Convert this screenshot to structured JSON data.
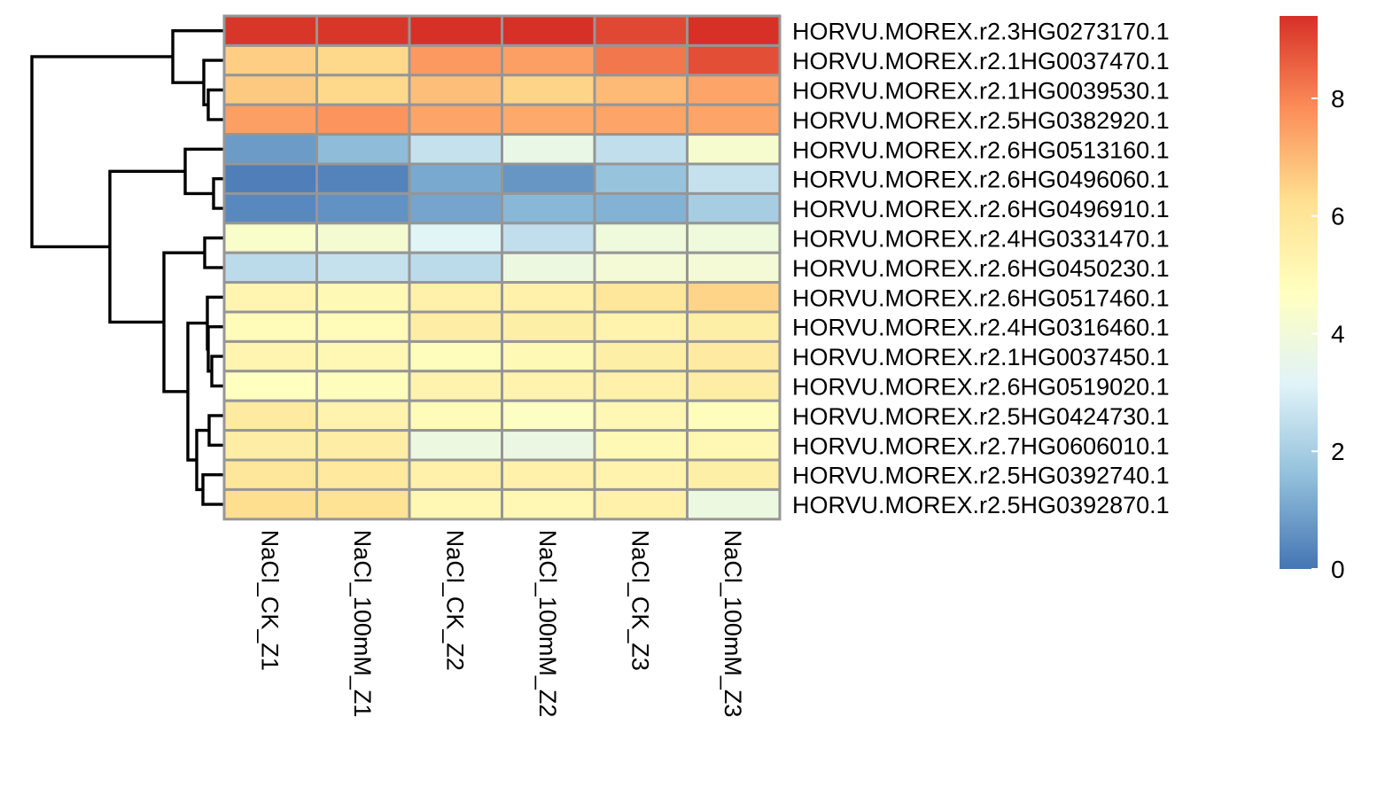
{
  "chart_data": {
    "type": "heatmap",
    "columns": [
      "NaCl_CK_Z1",
      "NaCl_100mM_Z1",
      "NaCl_CK_Z2",
      "NaCl_100mM_Z2",
      "NaCl_CK_Z3",
      "NaCl_100mM_Z3"
    ],
    "rows": [
      "HORVU.MOREX.r2.3HG0273170.1",
      "HORVU.MOREX.r2.1HG0037470.1",
      "HORVU.MOREX.r2.1HG0039530.1",
      "HORVU.MOREX.r2.5HG0382920.1",
      "HORVU.MOREX.r2.6HG0513160.1",
      "HORVU.MOREX.r2.6HG0496060.1",
      "HORVU.MOREX.r2.6HG0496910.1",
      "HORVU.MOREX.r2.4HG0331470.1",
      "HORVU.MOREX.r2.6HG0450230.1",
      "HORVU.MOREX.r2.6HG0517460.1",
      "HORVU.MOREX.r2.4HG0316460.1",
      "HORVU.MOREX.r2.1HG0037450.1",
      "HORVU.MOREX.r2.6HG0519020.1",
      "HORVU.MOREX.r2.5HG0424730.1",
      "HORVU.MOREX.r2.7HG0606010.1",
      "HORVU.MOREX.r2.5HG0392740.1",
      "HORVU.MOREX.r2.5HG0392870.1"
    ],
    "values": [
      [
        9.3,
        9.3,
        9.4,
        9.4,
        9.0,
        9.4
      ],
      [
        6.6,
        6.4,
        7.6,
        7.5,
        8.2,
        8.9
      ],
      [
        6.7,
        6.4,
        6.9,
        6.5,
        7.0,
        7.4
      ],
      [
        7.5,
        7.7,
        7.4,
        7.3,
        7.4,
        7.4
      ],
      [
        0.8,
        1.5,
        2.6,
        3.6,
        2.5,
        4.3
      ],
      [
        0.2,
        0.3,
        1.1,
        0.7,
        1.7,
        2.6
      ],
      [
        0.4,
        0.6,
        1.0,
        1.4,
        1.3,
        2.0
      ],
      [
        4.4,
        4.2,
        3.2,
        2.5,
        3.9,
        3.9
      ],
      [
        2.4,
        2.6,
        2.4,
        3.8,
        4.1,
        4.1
      ],
      [
        5.2,
        5.0,
        5.4,
        5.4,
        5.9,
        6.5
      ],
      [
        4.9,
        4.9,
        5.6,
        5.5,
        5.3,
        5.5
      ],
      [
        5.2,
        5.1,
        4.8,
        5.0,
        5.5,
        5.7
      ],
      [
        4.7,
        4.8,
        5.3,
        5.3,
        5.4,
        5.6
      ],
      [
        5.7,
        5.3,
        4.9,
        4.6,
        5.1,
        4.8
      ],
      [
        5.6,
        5.6,
        3.8,
        3.7,
        5.0,
        5.1
      ],
      [
        5.9,
        5.8,
        5.4,
        5.4,
        5.3,
        5.5
      ],
      [
        6.3,
        6.1,
        5.1,
        5.1,
        5.4,
        3.8
      ]
    ],
    "color_scale": {
      "min": 0,
      "max": 9.4,
      "stops": [
        "#4575B4",
        "#91BFDB",
        "#E0F3F8",
        "#FFFFBF",
        "#FEE090",
        "#FC8D59",
        "#D73027"
      ],
      "ticks": [
        0,
        2,
        4,
        6,
        8
      ]
    },
    "row_dendrogram": true,
    "cell_border_color": "#969696",
    "legend_placement": "right"
  }
}
